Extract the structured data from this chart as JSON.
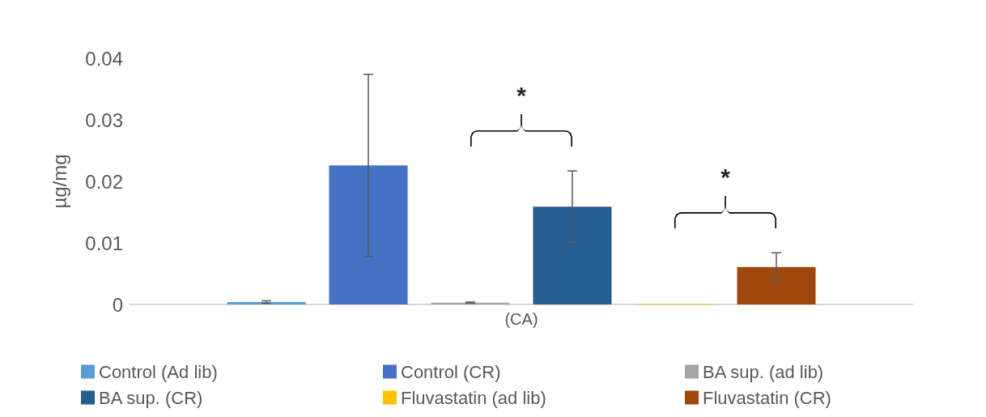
{
  "chart_data": {
    "type": "bar",
    "ylabel": "µg/mg",
    "categories": [
      "(CA)"
    ],
    "series": [
      {
        "name": "Control (Ad lib)",
        "color": "#5b9bd5",
        "values": [
          0.0004
        ],
        "errors": [
          0.0002
        ]
      },
      {
        "name": "Control (CR)",
        "color": "#4472c4",
        "values": [
          0.0226
        ],
        "errors": [
          0.0148
        ]
      },
      {
        "name": "BA sup. (ad lib)",
        "color": "#a5a5a5",
        "values": [
          0.0003
        ],
        "errors": [
          0.0001
        ]
      },
      {
        "name": "BA sup. (CR)",
        "color": "#255e91",
        "values": [
          0.0159
        ],
        "errors": [
          0.0058
        ]
      },
      {
        "name": "Fluvastatin (ad lib)",
        "color": "#ffc000",
        "values": [
          0.0001
        ],
        "errors": [
          null
        ]
      },
      {
        "name": "Fluvastatin (CR)",
        "color": "#9e480e",
        "values": [
          0.0061
        ],
        "errors": [
          0.0023
        ]
      }
    ],
    "ylim": [
      0,
      0.04
    ],
    "yticks": [
      0,
      0.01,
      0.02,
      0.03,
      0.04
    ],
    "grid": false,
    "legend": "bottom",
    "annotations": [
      "*",
      "*"
    ]
  }
}
